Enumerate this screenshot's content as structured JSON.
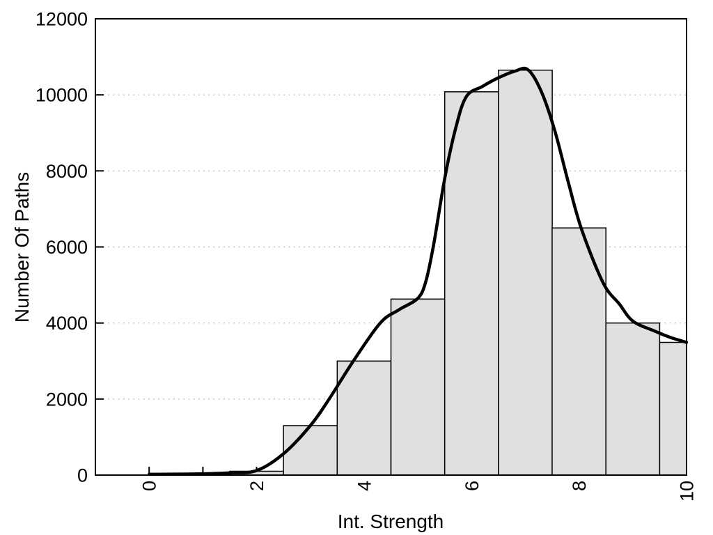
{
  "figure": {
    "background": "#ffffff",
    "description": "Histogram of number of paths versus interaction strength with smooth density curve overlay"
  },
  "chart_data": {
    "type": "bar",
    "subtype": "histogram-with-density-curve",
    "title": "",
    "xlabel": "Int. Strength",
    "ylabel": "Number Of Paths",
    "xlim": [
      -1,
      10
    ],
    "ylim": [
      0,
      12000
    ],
    "x_major_ticks": [
      0,
      2,
      4,
      6,
      8,
      10
    ],
    "x_major_tick_labels": [
      "0",
      "2",
      "4",
      "6",
      "8",
      "10"
    ],
    "x_minor_ticks": [
      1,
      3,
      5,
      7,
      9
    ],
    "y_ticks": [
      0,
      2000,
      4000,
      6000,
      8000,
      10000,
      12000
    ],
    "y_tick_labels": [
      "0",
      "2000",
      "4000",
      "6000",
      "8000",
      "10000",
      "12000"
    ],
    "grid_y": [
      2000,
      4000,
      6000,
      8000,
      10000
    ],
    "grid_style": "dotted",
    "legend": "none",
    "x_tick_label_rotation_deg": -90,
    "histogram": {
      "bin_width": 1,
      "bin_centers": [
        2,
        3,
        4,
        5,
        6,
        7,
        8,
        9,
        10
      ],
      "counts": [
        100,
        1300,
        3000,
        4630,
        10080,
        10650,
        6500,
        4000,
        3490
      ],
      "fill": "#e0e0e0",
      "stroke": "#000000",
      "last_bin_clipped_at_xmax": true
    },
    "density_curve": {
      "color": "#000000",
      "points": [
        [
          0,
          20
        ],
        [
          0.5,
          25
        ],
        [
          1,
          35
        ],
        [
          1.5,
          60
        ],
        [
          2,
          120
        ],
        [
          2.5,
          560
        ],
        [
          3,
          1300
        ],
        [
          3.35,
          2000
        ],
        [
          3.8,
          3000
        ],
        [
          4.3,
          4000
        ],
        [
          4.65,
          4350
        ],
        [
          5.0,
          4650
        ],
        [
          5.15,
          5100
        ],
        [
          5.3,
          6100
        ],
        [
          5.5,
          7800
        ],
        [
          5.7,
          9100
        ],
        [
          5.9,
          9950
        ],
        [
          6.2,
          10220
        ],
        [
          6.5,
          10450
        ],
        [
          6.8,
          10620
        ],
        [
          7.05,
          10660
        ],
        [
          7.3,
          10080
        ],
        [
          7.55,
          9050
        ],
        [
          7.8,
          7700
        ],
        [
          8.05,
          6450
        ],
        [
          8.45,
          5050
        ],
        [
          8.75,
          4500
        ],
        [
          9.0,
          4050
        ],
        [
          9.4,
          3790
        ],
        [
          9.7,
          3620
        ],
        [
          10,
          3490
        ]
      ]
    },
    "colors": {
      "grid": "#b5b5b5",
      "axis": "#000000",
      "text": "#000000",
      "bar_fill": "#e0e0e0"
    }
  }
}
